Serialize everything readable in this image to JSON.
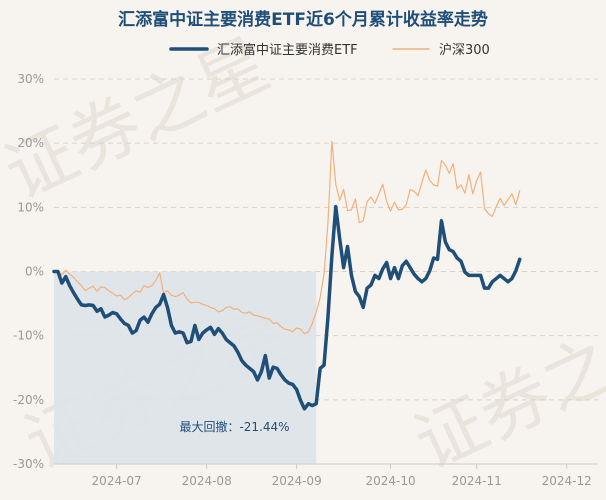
{
  "chart_data": {
    "type": "line",
    "title": "汇添富中证主要消费ETF近6个月累计收益率走势",
    "watermark": "证券之星",
    "legend_position": "top-center",
    "grid": true,
    "ylim": [
      -30,
      30
    ],
    "y_ticks": [
      "30%",
      "20%",
      "10%",
      "0%",
      "-10%",
      "-20%",
      "-30%"
    ],
    "y_tick_values": [
      30,
      20,
      10,
      0,
      -10,
      -20,
      -30
    ],
    "x_tick_labels": [
      "2024-07",
      "2024-08",
      "2024-09",
      "2024-10",
      "2024-11",
      "2024-12"
    ],
    "x_tick_positions": [
      16,
      39,
      62,
      86,
      108,
      131
    ],
    "x_range": [
      0,
      139
    ],
    "series": [
      {
        "name": "汇添富中证主要消费ETF",
        "color": "#1f4e79",
        "values": [
          0,
          0,
          -1.8,
          -0.8,
          -2.2,
          -3.3,
          -4.3,
          -5.2,
          -5.3,
          -5.2,
          -5.3,
          -6.2,
          -5.8,
          -7.1,
          -6.8,
          -6.4,
          -6.6,
          -7.4,
          -8.1,
          -8.4,
          -9.6,
          -9.2,
          -7.6,
          -7.1,
          -7.9,
          -6.6,
          -5.6,
          -5.1,
          -3.6,
          -5.6,
          -8.4,
          -9.6,
          -9.4,
          -9.6,
          -11.1,
          -10.9,
          -8.4,
          -10.6,
          -9.6,
          -9.1,
          -8.7,
          -9.8,
          -8.9,
          -9.6,
          -10.6,
          -11.1,
          -11.6,
          -12.6,
          -13.9,
          -14.6,
          -15.1,
          -15.6,
          -16.9,
          -15.6,
          -13.1,
          -16.6,
          -14.9,
          -15.1,
          -16.1,
          -16.9,
          -17.4,
          -17.6,
          -18.4,
          -20.1,
          -21.4,
          -20.6,
          -20.9,
          -20.6,
          -15.1,
          -14.6,
          -7.1,
          2.4,
          10.1,
          5.1,
          0.6,
          3.9,
          -0.6,
          -3.1,
          -3.9,
          -5.6,
          -2.6,
          -2.1,
          -0.6,
          -1.1,
          0.4,
          1.4,
          -1.1,
          0.6,
          -1.1,
          0.9,
          1.6,
          0.6,
          -0.4,
          -1.1,
          -1.6,
          -1.1,
          0.1,
          2.1,
          1.9,
          7.9,
          4.6,
          3.4,
          3.1,
          2.1,
          1.6,
          -0.1,
          -0.6,
          -0.6,
          -0.6,
          -0.6,
          -2.6,
          -2.6,
          -1.6,
          -1.1,
          -0.6,
          -1.1,
          -1.6,
          -1.1,
          0.1,
          1.9
        ],
        "max_drawdown_label": "最大回撤：-21.44%"
      },
      {
        "name": "沪深300",
        "color": "#f2b07d",
        "values": [
          0,
          0,
          -0.5,
          0.2,
          -0.4,
          -0.9,
          -1.6,
          -2.2,
          -3.0,
          -2.6,
          -2.3,
          -3.1,
          -2.4,
          -2.5,
          -3.0,
          -3.4,
          -3.8,
          -3.7,
          -4.4,
          -4.1,
          -3.5,
          -3.0,
          -3.2,
          -2.2,
          -2.5,
          -2.2,
          -1.4,
          -0.2,
          -3.4,
          -3.0,
          -3.7,
          -3.9,
          -3.7,
          -3.3,
          -4.3,
          -4.9,
          -4.8,
          -4.8,
          -5.1,
          -5.3,
          -5.6,
          -5.8,
          -6.3,
          -6.1,
          -5.6,
          -5.5,
          -5.9,
          -5.8,
          -6.4,
          -6.5,
          -6.3,
          -6.8,
          -6.9,
          -7.1,
          -7.3,
          -7.4,
          -8.1,
          -8.0,
          -8.6,
          -9.0,
          -9.1,
          -9.4,
          -8.8,
          -9.0,
          -9.7,
          -9.4,
          -8.1,
          -6.3,
          -4.1,
          -0.4,
          7.6,
          20.3,
          13.6,
          11.1,
          12.8,
          9.5,
          9.6,
          11.3,
          7.6,
          7.9,
          10.9,
          11.6,
          10.6,
          12.1,
          13.6,
          10.9,
          9.4,
          10.8,
          9.6,
          9.7,
          10.4,
          12.8,
          12.5,
          11.8,
          13.9,
          15.8,
          14.2,
          13.5,
          13.3,
          17.3,
          16.6,
          15.3,
          16.8,
          12.9,
          13.5,
          12.2,
          15.1,
          12.1,
          14.2,
          15.5,
          9.8,
          9.0,
          8.6,
          10.1,
          11.4,
          10.3,
          11.2,
          12.1,
          10.4,
          12.6
        ]
      }
    ]
  }
}
